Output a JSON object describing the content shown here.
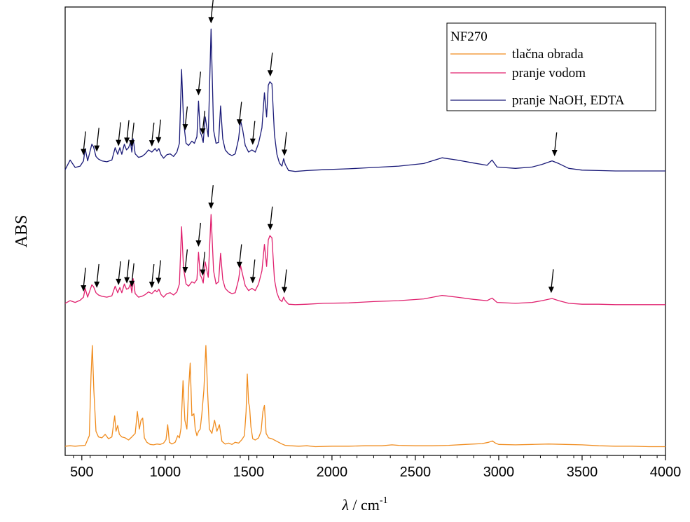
{
  "chart_data": {
    "type": "line",
    "xlabel_main": "λ",
    "xlabel_unit": " / cm",
    "xlabel_exp": "-1",
    "ylabel": "ABS",
    "xlim": [
      400,
      4000
    ],
    "xticks": [
      500,
      1000,
      1500,
      2000,
      2500,
      3000,
      3500,
      4000
    ],
    "tick_labels": [
      "500",
      "1000",
      "1500",
      "2000",
      "2500",
      "3000",
      "3500",
      "4000"
    ],
    "grid": false,
    "legend": {
      "title": "NF270",
      "position": "top-right"
    },
    "series": [
      {
        "name": "tlačna obrada",
        "color": "#f08c1e",
        "baseline": 0.2,
        "x": [
          400,
          430,
          460,
          490,
          520,
          545,
          555,
          563,
          572,
          585,
          600,
          620,
          640,
          660,
          680,
          697,
          705,
          715,
          725,
          740,
          760,
          780,
          800,
          820,
          833,
          845,
          855,
          865,
          875,
          890,
          910,
          930,
          950,
          970,
          990,
          1005,
          1015,
          1025,
          1040,
          1060,
          1075,
          1085,
          1095,
          1107,
          1118,
          1130,
          1140,
          1150,
          1160,
          1172,
          1180,
          1190,
          1200,
          1210,
          1220,
          1232,
          1244,
          1255,
          1265,
          1280,
          1296,
          1310,
          1325,
          1340,
          1360,
          1380,
          1400,
          1420,
          1440,
          1460,
          1475,
          1485,
          1492,
          1500,
          1506,
          1514,
          1525,
          1540,
          1560,
          1575,
          1586,
          1595,
          1605,
          1620,
          1640,
          1660,
          1680,
          1700,
          1720,
          1750,
          1800,
          1850,
          1900,
          2000,
          2100,
          2200,
          2300,
          2360,
          2400,
          2500,
          2600,
          2700,
          2800,
          2900,
          2940,
          2962,
          2980,
          3000,
          3100,
          3200,
          3300,
          3400,
          3500,
          3600,
          3700,
          3800,
          3900,
          4000
        ],
        "y": [
          0.21,
          0.22,
          0.21,
          0.22,
          0.23,
          0.45,
          1.8,
          2.5,
          1.5,
          0.55,
          0.42,
          0.4,
          0.48,
          0.38,
          0.42,
          0.9,
          0.55,
          0.68,
          0.48,
          0.42,
          0.4,
          0.35,
          0.42,
          0.5,
          1.0,
          0.6,
          0.8,
          0.85,
          0.4,
          0.3,
          0.25,
          0.24,
          0.26,
          0.25,
          0.28,
          0.36,
          0.7,
          0.3,
          0.26,
          0.3,
          0.45,
          0.4,
          0.62,
          1.7,
          0.8,
          0.6,
          1.5,
          2.1,
          0.9,
          0.95,
          0.6,
          0.45,
          0.55,
          0.6,
          0.95,
          1.5,
          2.5,
          1.4,
          0.6,
          0.5,
          0.8,
          0.55,
          0.7,
          0.32,
          0.26,
          0.28,
          0.25,
          0.3,
          0.28,
          0.36,
          0.45,
          1.0,
          1.85,
          1.2,
          1.1,
          0.65,
          0.38,
          0.35,
          0.4,
          0.55,
          1.0,
          1.14,
          0.5,
          0.4,
          0.38,
          0.34,
          0.3,
          0.26,
          0.23,
          0.22,
          0.21,
          0.22,
          0.2,
          0.21,
          0.21,
          0.22,
          0.22,
          0.24,
          0.23,
          0.22,
          0.22,
          0.23,
          0.25,
          0.27,
          0.3,
          0.33,
          0.28,
          0.25,
          0.24,
          0.25,
          0.26,
          0.25,
          0.24,
          0.22,
          0.21,
          0.21,
          0.2,
          0.2
        ]
      },
      {
        "name": "pranje vodom",
        "color": "#e0206e",
        "baseline": 3.44,
        "x": [
          400,
          430,
          460,
          490,
          510,
          520,
          535,
          560,
          570,
          585,
          600,
          620,
          650,
          680,
          700,
          715,
          728,
          740,
          755,
          768,
          780,
          792,
          800,
          808,
          820,
          840,
          860,
          880,
          900,
          920,
          940,
          950,
          962,
          975,
          990,
          1010,
          1030,
          1050,
          1070,
          1085,
          1098,
          1110,
          1125,
          1140,
          1160,
          1175,
          1190,
          1200,
          1210,
          1218,
          1228,
          1240,
          1258,
          1275,
          1290,
          1305,
          1320,
          1332,
          1345,
          1360,
          1380,
          1400,
          1420,
          1440,
          1452,
          1465,
          1480,
          1500,
          1520,
          1540,
          1560,
          1580,
          1595,
          1608,
          1618,
          1628,
          1640,
          1655,
          1670,
          1685,
          1700,
          1710,
          1720,
          1740,
          1780,
          1850,
          1950,
          2100,
          2250,
          2400,
          2550,
          2660,
          2750,
          2850,
          2930,
          2960,
          2990,
          3100,
          3200,
          3260,
          3320,
          3360,
          3420,
          3500,
          3600,
          3700,
          3800,
          3900,
          4000
        ],
        "y": [
          3.46,
          3.52,
          3.48,
          3.53,
          3.6,
          3.8,
          3.6,
          3.88,
          3.84,
          3.7,
          3.65,
          3.62,
          3.6,
          3.63,
          3.85,
          3.7,
          3.82,
          3.7,
          3.9,
          3.78,
          3.8,
          3.9,
          3.7,
          4.02,
          3.68,
          3.6,
          3.62,
          3.66,
          3.72,
          3.68,
          3.76,
          3.72,
          3.78,
          3.66,
          3.6,
          3.68,
          3.7,
          3.65,
          3.72,
          3.9,
          5.2,
          4.25,
          3.9,
          3.85,
          3.95,
          3.92,
          4.0,
          4.62,
          4.1,
          4.05,
          3.92,
          4.4,
          4.05,
          5.48,
          4.2,
          3.9,
          3.95,
          4.6,
          4.0,
          3.8,
          3.72,
          3.68,
          3.7,
          4.0,
          4.32,
          4.1,
          3.86,
          3.75,
          3.8,
          3.75,
          3.9,
          4.2,
          4.8,
          4.3,
          4.9,
          5.0,
          4.95,
          4.0,
          3.7,
          3.55,
          3.5,
          3.6,
          3.52,
          3.44,
          3.43,
          3.44,
          3.46,
          3.47,
          3.5,
          3.52,
          3.56,
          3.64,
          3.6,
          3.55,
          3.52,
          3.58,
          3.48,
          3.46,
          3.48,
          3.52,
          3.57,
          3.52,
          3.46,
          3.44,
          3.44,
          3.43,
          3.43,
          3.43,
          3.43
        ]
      },
      {
        "name": "pranje NaOH, EDTA",
        "color": "#1a1a78",
        "baseline": 6.48,
        "x": [
          400,
          430,
          460,
          490,
          510,
          520,
          535,
          560,
          570,
          585,
          600,
          620,
          650,
          680,
          700,
          715,
          728,
          740,
          755,
          768,
          780,
          792,
          800,
          808,
          820,
          840,
          860,
          880,
          900,
          920,
          940,
          950,
          962,
          975,
          990,
          1010,
          1030,
          1050,
          1070,
          1085,
          1098,
          1110,
          1125,
          1140,
          1160,
          1175,
          1190,
          1200,
          1210,
          1218,
          1228,
          1240,
          1258,
          1275,
          1290,
          1305,
          1320,
          1332,
          1345,
          1360,
          1380,
          1400,
          1420,
          1440,
          1452,
          1465,
          1480,
          1500,
          1520,
          1540,
          1560,
          1580,
          1595,
          1608,
          1618,
          1628,
          1640,
          1655,
          1670,
          1685,
          1700,
          1710,
          1720,
          1740,
          1780,
          1850,
          1950,
          2100,
          2250,
          2400,
          2550,
          2660,
          2750,
          2850,
          2930,
          2960,
          2990,
          3100,
          3200,
          3260,
          3320,
          3360,
          3420,
          3500,
          3600,
          3700,
          3800,
          3900,
          4000
        ],
        "y": [
          6.5,
          6.72,
          6.55,
          6.58,
          6.7,
          6.98,
          6.7,
          7.08,
          7.02,
          6.8,
          6.74,
          6.7,
          6.68,
          6.72,
          7.0,
          6.85,
          7.0,
          6.85,
          7.08,
          6.95,
          7.0,
          7.12,
          6.9,
          7.2,
          6.86,
          6.78,
          6.8,
          6.86,
          6.95,
          6.9,
          6.98,
          6.92,
          6.98,
          6.84,
          6.76,
          6.84,
          6.86,
          6.8,
          6.9,
          7.1,
          8.78,
          7.6,
          7.1,
          7.05,
          7.15,
          7.1,
          7.25,
          8.06,
          7.35,
          7.28,
          7.12,
          7.7,
          7.25,
          9.7,
          7.4,
          7.1,
          7.12,
          7.95,
          7.2,
          6.95,
          6.86,
          6.82,
          6.86,
          7.2,
          7.62,
          7.4,
          7.05,
          6.9,
          6.95,
          6.9,
          7.1,
          7.45,
          8.25,
          7.7,
          8.42,
          8.5,
          8.45,
          7.3,
          6.85,
          6.65,
          6.58,
          6.75,
          6.62,
          6.48,
          6.46,
          6.48,
          6.5,
          6.52,
          6.55,
          6.58,
          6.64,
          6.77,
          6.72,
          6.65,
          6.6,
          6.72,
          6.56,
          6.53,
          6.56,
          6.62,
          6.7,
          6.64,
          6.53,
          6.49,
          6.48,
          6.47,
          6.47,
          6.47,
          6.47
        ]
      }
    ],
    "annotations": {
      "type": "arrow",
      "description_x": [
        510,
        590,
        720,
        770,
        800,
        920,
        960,
        1120,
        1200,
        1225,
        1275,
        1445,
        1525,
        1630,
        1715,
        3315
      ],
      "upper_x": [
        510,
        590,
        720,
        770,
        800,
        920,
        960,
        1120,
        1200,
        1225,
        1275,
        1445,
        1525,
        1630,
        1715,
        3335
      ]
    }
  }
}
